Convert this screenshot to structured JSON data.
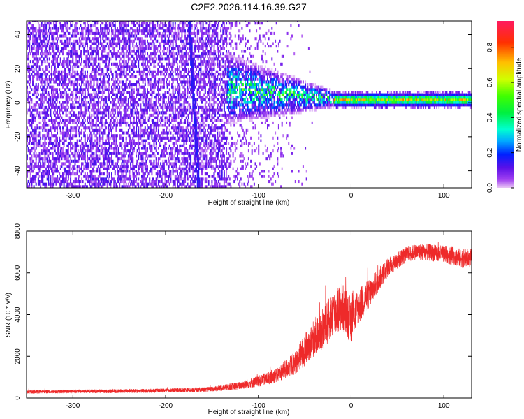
{
  "figure_title": "C2E2.2026.114.16.39.G27",
  "chart_data": [
    {
      "type": "heatmap",
      "title": "C2E2.2026.114.16.39.G27",
      "xlabel": "Height of straight line (km)",
      "ylabel": "Frequency (Hz)",
      "xlim": [
        -350,
        130
      ],
      "ylim": [
        -50,
        48
      ],
      "xticks": [
        -300,
        -200,
        -100,
        0,
        100
      ],
      "xtick_labels": [
        "-300",
        "-200",
        "-100",
        "0",
        "100"
      ],
      "yticks": [
        -40,
        -20,
        0,
        20,
        40
      ],
      "ytick_labels": [
        "-40",
        "-20",
        "0",
        "20",
        "40"
      ],
      "colorbar": {
        "label": "Normalized spectral amplitude",
        "range": [
          0,
          0.95
        ],
        "ticks": [
          0.0,
          0.2,
          0.4,
          0.6,
          0.8
        ],
        "tick_labels": [
          "0.0",
          "0.2",
          "0.4",
          "0.6",
          "0.8"
        ]
      },
      "regions": [
        {
          "description": "diffuse noise",
          "x_range": [
            -350,
            -135
          ],
          "freq_range": [
            -50,
            48
          ],
          "amplitude": 0.1
        },
        {
          "description": "spreading signal",
          "x_range": [
            -135,
            -20
          ],
          "freq_range": [
            -10,
            20
          ],
          "amplitude": 0.35
        },
        {
          "description": "narrow carrier",
          "x_range": [
            -20,
            130
          ],
          "freq_range": [
            -2,
            3
          ],
          "amplitude": 0.7
        }
      ],
      "streak": {
        "x_start": -165,
        "x_end": -175,
        "freq_range": [
          -50,
          48
        ]
      }
    },
    {
      "type": "line",
      "xlabel": "Height of straight line (km)",
      "ylabel": "SNR (10 * v/v)",
      "xlim": [
        -350,
        130
      ],
      "ylim": [
        0,
        8000
      ],
      "xticks": [
        -300,
        -200,
        -100,
        0,
        100
      ],
      "xtick_labels": [
        "-300",
        "-200",
        "-100",
        "0",
        "100"
      ],
      "yticks": [
        0,
        2000,
        4000,
        6000,
        8000
      ],
      "ytick_labels": [
        "0",
        "2000",
        "4000",
        "6000",
        "8000"
      ],
      "series": [
        {
          "name": "SNR",
          "color": "#ee2a2a",
          "x": [
            -350,
            -300,
            -250,
            -200,
            -150,
            -120,
            -100,
            -80,
            -60,
            -50,
            -40,
            -30,
            -20,
            -10,
            0,
            10,
            20,
            30,
            40,
            50,
            60,
            70,
            80,
            100,
            120,
            130
          ],
          "y": [
            300,
            320,
            330,
            360,
            420,
            600,
            800,
            1100,
            1700,
            2300,
            2900,
            3300,
            4000,
            4400,
            3700,
            4500,
            5000,
            5700,
            6300,
            6600,
            6900,
            7000,
            7000,
            6900,
            6700,
            6700
          ],
          "noise": [
            80,
            80,
            85,
            90,
            110,
            180,
            260,
            340,
            550,
            750,
            900,
            1000,
            1100,
            1150,
            1100,
            850,
            700,
            550,
            450,
            400,
            380,
            380,
            400,
            400,
            450,
            450
          ]
        }
      ]
    }
  ]
}
